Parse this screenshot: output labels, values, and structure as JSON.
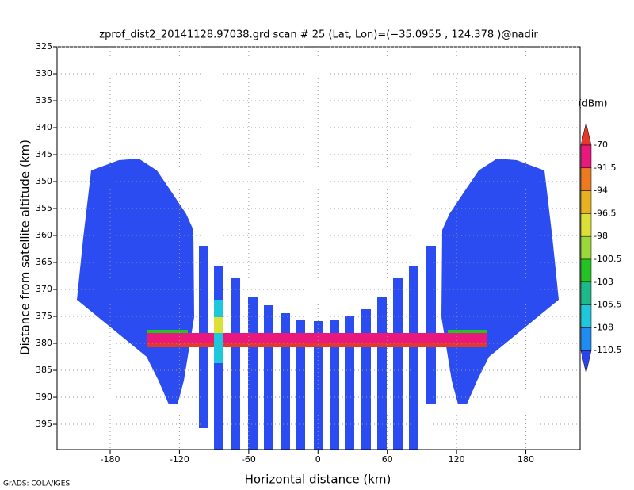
{
  "chart_data": {
    "type": "profile",
    "title": "zprof_dist2_20141128.97038.grd  scan # 25  (Lat, Lon)=(−35.0955 , 124.378 )@nadir",
    "x_label": "Horizontal distance (km)",
    "y_label": "Distance from satellite altitude (km)",
    "footer": "GrADS: COLA/IGES",
    "xlim": [
      -226,
      227
    ],
    "xticks": [
      -180,
      -120,
      -60,
      0,
      60,
      120,
      180
    ],
    "ylim": [
      325,
      399.7
    ],
    "yticks": [
      325,
      330,
      335,
      340,
      345,
      350,
      355,
      360,
      365,
      370,
      375,
      380,
      385,
      390,
      395
    ],
    "y_reversed": true,
    "grid": true,
    "colorbar": {
      "unit": "(dBm)",
      "levels": [
        -70,
        -91.5,
        -94,
        -96.5,
        -98,
        -100.5,
        -103,
        -105.5,
        -108,
        -110.5
      ],
      "colors": [
        "#e6372b",
        "#e8187d",
        "#ee7a1f",
        "#e8b21f",
        "#dde034",
        "#9ad83a",
        "#22c422",
        "#1cb98a",
        "#1ec8dc",
        "#1e8cf0",
        "#2a44e8"
      ]
    }
  }
}
